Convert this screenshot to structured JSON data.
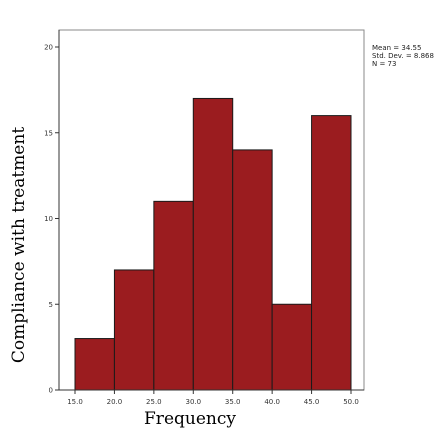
{
  "chart_data": {
    "type": "bar",
    "xlabel": "Frequency",
    "ylabel": "Compliance with treatment",
    "bin_edges": [
      15.0,
      20.0,
      25.0,
      30.0,
      35.0,
      40.0,
      45.0,
      50.0
    ],
    "values": [
      3,
      7,
      11,
      17,
      14,
      5,
      16
    ],
    "xlim": [
      15.0,
      50.0
    ],
    "ylim": [
      0,
      20
    ],
    "x_ticks": [
      "15.0",
      "20.0",
      "25.0",
      "30.0",
      "35.0",
      "40.0",
      "45.0",
      "50.0"
    ],
    "y_ticks": [
      "0",
      "5",
      "10",
      "15",
      "20"
    ],
    "stats": [
      "Mean = 34.55",
      "Std. Dev. = 8.868",
      "N = 73"
    ],
    "bar_color": "#9b1c1f",
    "bar_edge_color": "#1a1a1a",
    "grid": false,
    "legend": "none"
  }
}
